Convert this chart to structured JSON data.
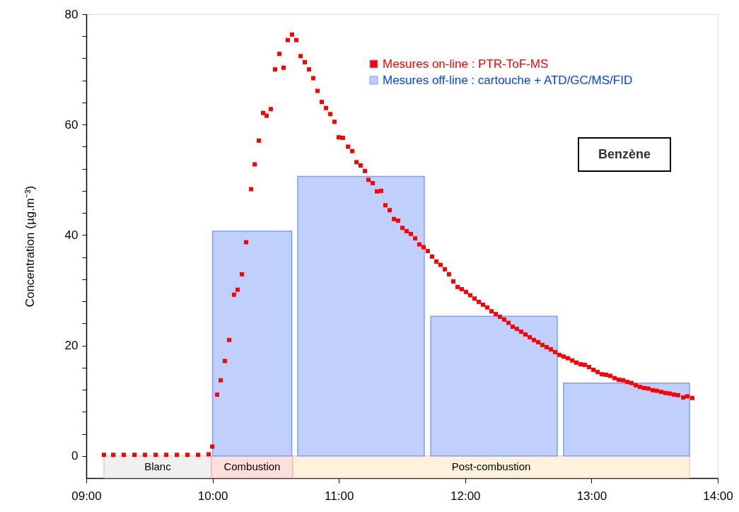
{
  "chart_data": {
    "type": "histogram",
    "ylabel": "Concentration (µg.m⁻³)",
    "xlim": [
      9,
      14
    ],
    "xticks": [
      {
        "value": 9,
        "label": "09:00"
      },
      {
        "value": 10,
        "label": "10:00"
      },
      {
        "value": 11,
        "label": "11:00"
      },
      {
        "value": 12,
        "label": "12:00"
      },
      {
        "value": 13,
        "label": "13:00"
      },
      {
        "value": 14,
        "label": "14:00"
      }
    ],
    "ylim": [
      -4,
      80
    ],
    "yticks": [
      0,
      {
        "value": 4,
        "label": null
      },
      {
        "value": 8,
        "label": null
      },
      {
        "value": 12,
        "label": null
      },
      {
        "value": 16,
        "label": null
      },
      20,
      {
        "value": 24,
        "label": null
      },
      {
        "value": 28,
        "label": null
      },
      {
        "value": 32,
        "label": null
      },
      {
        "value": 36,
        "label": null
      },
      40,
      {
        "value": 44,
        "label": null
      },
      {
        "value": 48,
        "label": null
      },
      {
        "value": 52,
        "label": null
      },
      {
        "value": 56,
        "label": null
      },
      60,
      {
        "value": 64,
        "label": null
      },
      {
        "value": 68,
        "label": null
      },
      {
        "value": 72,
        "label": null
      },
      {
        "value": 76,
        "label": null
      },
      80
    ],
    "grid": false,
    "legend": "top right",
    "series": [
      {
        "type": "histogram",
        "name": "Mesures off-line : cartouche + ATD/GC/MS/FID",
        "color": "#c0cffc",
        "bins": [
          10.0,
          10.627,
          10.674,
          11.676,
          11.727,
          12.729,
          12.779,
          13.776
        ],
        "values": [
          40.7,
          null,
          50.6,
          null,
          25.3,
          null,
          13.2
        ]
      },
      {
        "type": "scatter",
        "name": "Mesures on-line : PTR-ToF-MS",
        "color": "#ff0000",
        "marker": "square",
        "x": [
          9.14,
          9.213,
          9.297,
          9.381,
          9.465,
          9.549,
          9.633,
          9.717,
          9.801,
          9.885,
          9.969,
          9.997,
          10.036,
          10.064,
          10.097,
          10.131,
          10.17,
          10.198,
          10.232,
          10.265,
          10.305,
          10.333,
          10.366,
          10.4,
          10.428,
          10.461,
          10.495,
          10.529,
          10.562,
          10.596,
          10.629,
          10.663,
          10.697,
          10.73,
          10.764,
          10.797,
          10.831,
          10.865,
          10.898,
          10.932,
          10.965,
          10.999,
          11.032,
          11.072,
          11.105,
          11.139,
          11.172,
          11.206,
          11.234,
          11.268,
          11.301,
          11.335,
          11.368,
          11.402,
          11.436,
          11.469,
          11.503,
          11.536,
          11.57,
          11.604,
          11.637,
          11.671,
          11.704,
          11.738,
          11.772,
          11.805,
          11.839,
          11.872,
          11.906,
          11.94,
          11.973,
          12.007,
          12.04,
          12.074,
          12.108,
          12.141,
          12.175,
          12.208,
          12.242,
          12.275,
          12.309,
          12.343,
          12.376,
          12.41,
          12.443,
          12.477,
          12.511,
          12.544,
          12.578,
          12.611,
          12.645,
          12.679,
          12.712,
          12.746,
          12.779,
          12.813,
          12.847,
          12.88,
          12.914,
          12.947,
          12.981,
          13.015,
          13.048,
          13.082,
          13.115,
          13.149,
          13.183,
          13.216,
          13.25,
          13.283,
          13.317,
          13.351,
          13.384,
          13.418,
          13.451,
          13.485,
          13.518,
          13.552,
          13.586,
          13.619,
          13.653,
          13.686,
          13.726,
          13.759,
          13.798
        ],
        "values": [
          0.2,
          0.2,
          0.2,
          0.2,
          0.2,
          0.2,
          0.2,
          0.2,
          0.2,
          0.2,
          0.3,
          1.7,
          11.1,
          13.7,
          17.2,
          21.0,
          29.2,
          30.1,
          32.9,
          38.7,
          48.3,
          52.8,
          57.1,
          62.1,
          61.6,
          62.8,
          70.0,
          72.8,
          70.3,
          75.3,
          76.3,
          75.3,
          72.4,
          71.3,
          70.0,
          68.4,
          66.1,
          64.1,
          63.0,
          61.9,
          60.5,
          57.7,
          57.6,
          56.0,
          55.2,
          53.2,
          52.6,
          51.6,
          50.0,
          49.4,
          47.9,
          48.0,
          45.4,
          44.5,
          42.9,
          42.6,
          41.3,
          40.7,
          40.2,
          39.4,
          38.3,
          37.8,
          37.1,
          36.1,
          35.2,
          34.6,
          33.8,
          32.9,
          31.6,
          30.6,
          30.2,
          29.7,
          29.1,
          28.5,
          27.9,
          27.4,
          26.9,
          26.2,
          25.7,
          25.2,
          24.7,
          24.1,
          23.4,
          23.0,
          22.5,
          22.0,
          21.5,
          21.0,
          20.6,
          20.1,
          19.7,
          19.3,
          18.8,
          18.3,
          18.0,
          17.7,
          17.3,
          16.9,
          16.6,
          16.5,
          16.1,
          15.6,
          15.2,
          14.8,
          14.7,
          14.5,
          14.1,
          13.8,
          13.7,
          13.4,
          13.2,
          12.8,
          12.5,
          12.3,
          12.2,
          11.9,
          11.8,
          11.6,
          11.4,
          11.3,
          11.1,
          11.0,
          10.6,
          10.8,
          10.5
        ]
      }
    ],
    "bands": [
      {
        "axis": "x",
        "from": 9.14,
        "to": 9.99,
        "label": "Blanc",
        "color": "#f0f0f0"
      },
      {
        "axis": "x",
        "from": 9.99,
        "to": 10.635,
        "label": "Combustion",
        "color": "#ffdede"
      },
      {
        "axis": "x",
        "from": 10.635,
        "to": 13.776,
        "label": "Post-combustion",
        "color": "#fff2dc"
      }
    ],
    "annotations": [
      "Benzène"
    ]
  }
}
